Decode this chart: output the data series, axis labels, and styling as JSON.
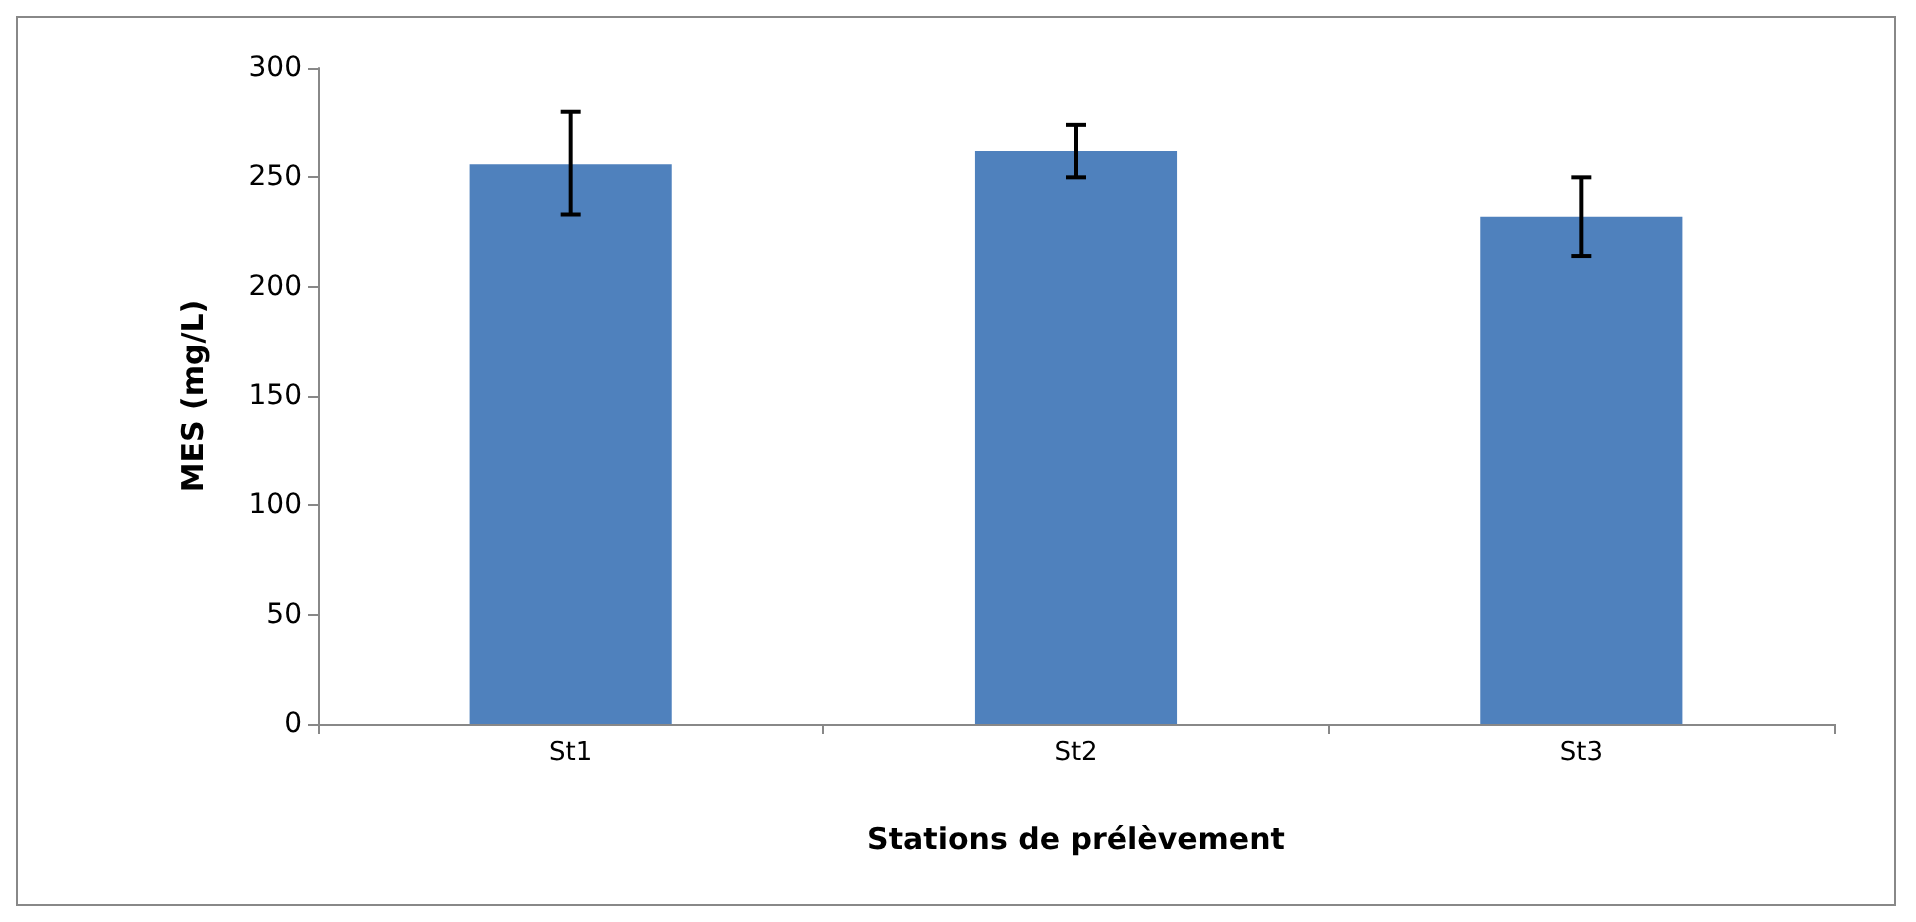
{
  "chart_data": {
    "type": "bar",
    "xlabel": "Stations de prélèvement",
    "ylabel": "MES (mg/L)",
    "categories": [
      "St1",
      "St2",
      "St3"
    ],
    "values": [
      256,
      262,
      232
    ],
    "errors": [
      [
        233,
        280
      ],
      [
        250,
        274
      ],
      [
        214,
        250
      ]
    ],
    "color": "#4f81bd",
    "ylim": [
      0,
      300
    ],
    "yticks": [
      0,
      50,
      100,
      150,
      200,
      250,
      300
    ],
    "grid": false
  }
}
